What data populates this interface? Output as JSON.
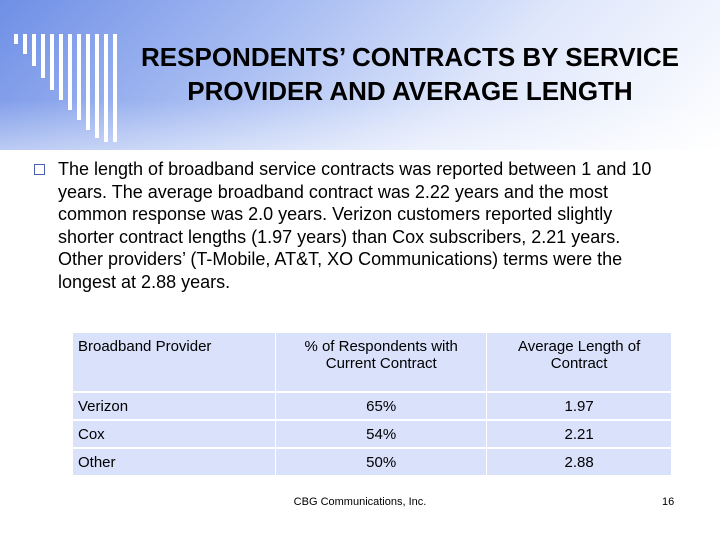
{
  "slide": {
    "title": "RESPONDENTS’ CONTRACTS BY SERVICE PROVIDER AND AVERAGE LENGTH",
    "bullet_text": "The length of broadband service contracts was reported between 1 and 10 years.  The average broadband contract was 2.22 years and the most common response was 2.0 years.  Verizon customers reported slightly shorter contract lengths (1.97 years) than Cox subscribers, 2.21 years.  Other providers’ (T-Mobile, AT&T, XO Communications) terms were the longest at 2.88 years.",
    "footer": "CBG Communications, Inc.",
    "page_number": "16"
  },
  "table": {
    "headers": [
      "Broadband Provider",
      "% of Respondents with Current Contract",
      "Average Length of Contract"
    ],
    "rows": [
      [
        "Verizon",
        "65%",
        "1.97"
      ],
      [
        "Cox",
        "54%",
        "2.21"
      ],
      [
        "Other",
        "50%",
        "2.88"
      ]
    ]
  },
  "colors": {
    "header_gradient": "#6f8fe6",
    "table_cell": "#d9e1fb",
    "bullet_border": "#4a5fb0"
  }
}
